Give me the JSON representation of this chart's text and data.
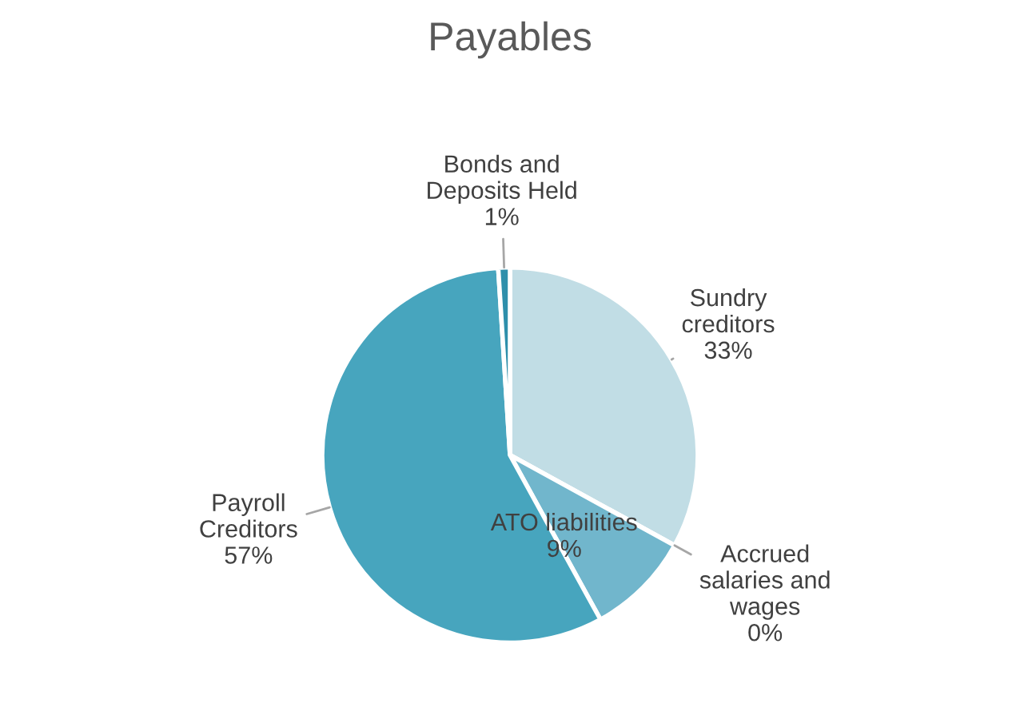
{
  "chart_data": {
    "type": "pie",
    "title": "Payables",
    "categories": [
      "Sundry creditors",
      "Accrued salaries and wages",
      "ATO liabilities",
      "Payroll Creditors",
      "Bonds and Deposits Held"
    ],
    "values": [
      33,
      0,
      9,
      57,
      1
    ],
    "colors": [
      "#c1dde5",
      "#9dcbda",
      "#71b6cc",
      "#47a5be",
      "#2e8fab"
    ],
    "value_labels": [
      "33%",
      "0%",
      "9%",
      "57%",
      "1%"
    ]
  }
}
